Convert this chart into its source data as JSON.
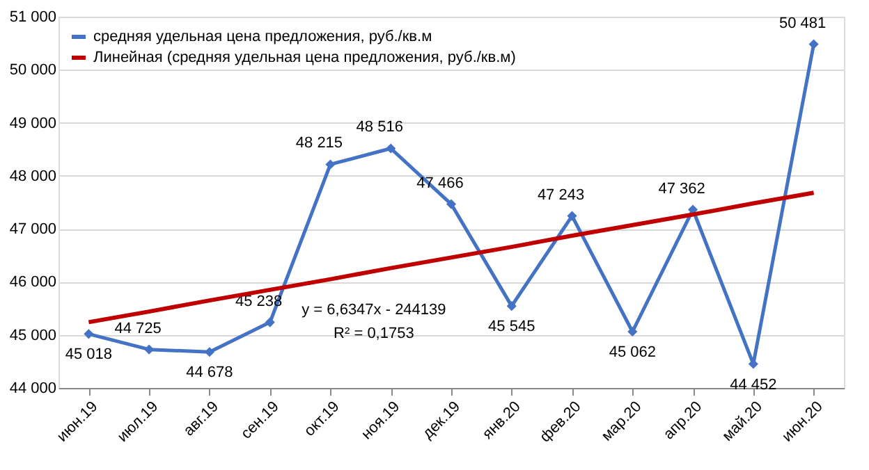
{
  "chart_data": {
    "type": "line",
    "categories": [
      "июн.19",
      "июл.19",
      "авг.19",
      "сен.19",
      "окт.19",
      "ноя.19",
      "дек.19",
      "янв.20",
      "фев.20",
      "мар.20",
      "апр.20",
      "май.20",
      "июн.20"
    ],
    "series": [
      {
        "name": "средняя удельная цена предложения, руб./кв.м",
        "color": "#4472c4",
        "marker": "diamond",
        "values": [
          45018,
          44725,
          44678,
          45238,
          48215,
          48516,
          47466,
          45545,
          47243,
          45062,
          47362,
          44452,
          50481
        ],
        "value_labels": [
          "45 018",
          "44 725",
          "44 678",
          "45 238",
          "48 215",
          "48 516",
          "47 466",
          "45 545",
          "47 243",
          "45 062",
          "47 362",
          "44 452",
          "50 481"
        ]
      },
      {
        "name": "Линейная (средняя удельная цена предложения, руб./кв.м)",
        "color": "#c00000",
        "marker": "none",
        "values": [
          45240,
          45440,
          45650,
          45850,
          46050,
          46260,
          46460,
          46660,
          46870,
          47070,
          47270,
          47480,
          47680
        ]
      }
    ],
    "ylim": [
      44000,
      51000
    ],
    "yticks": [
      {
        "value": 44000,
        "label": "44 000"
      },
      {
        "value": 45000,
        "label": "45 000"
      },
      {
        "value": 46000,
        "label": "46 000"
      },
      {
        "value": 47000,
        "label": "47 000"
      },
      {
        "value": 48000,
        "label": "48 000"
      },
      {
        "value": 49000,
        "label": "49 000"
      },
      {
        "value": 50000,
        "label": "50 000"
      },
      {
        "value": 51000,
        "label": "51 000"
      }
    ],
    "grid": "y",
    "legend": "top left",
    "annotations": [
      "y = 6,6347x - 244139",
      "R² = 0,1753"
    ]
  }
}
